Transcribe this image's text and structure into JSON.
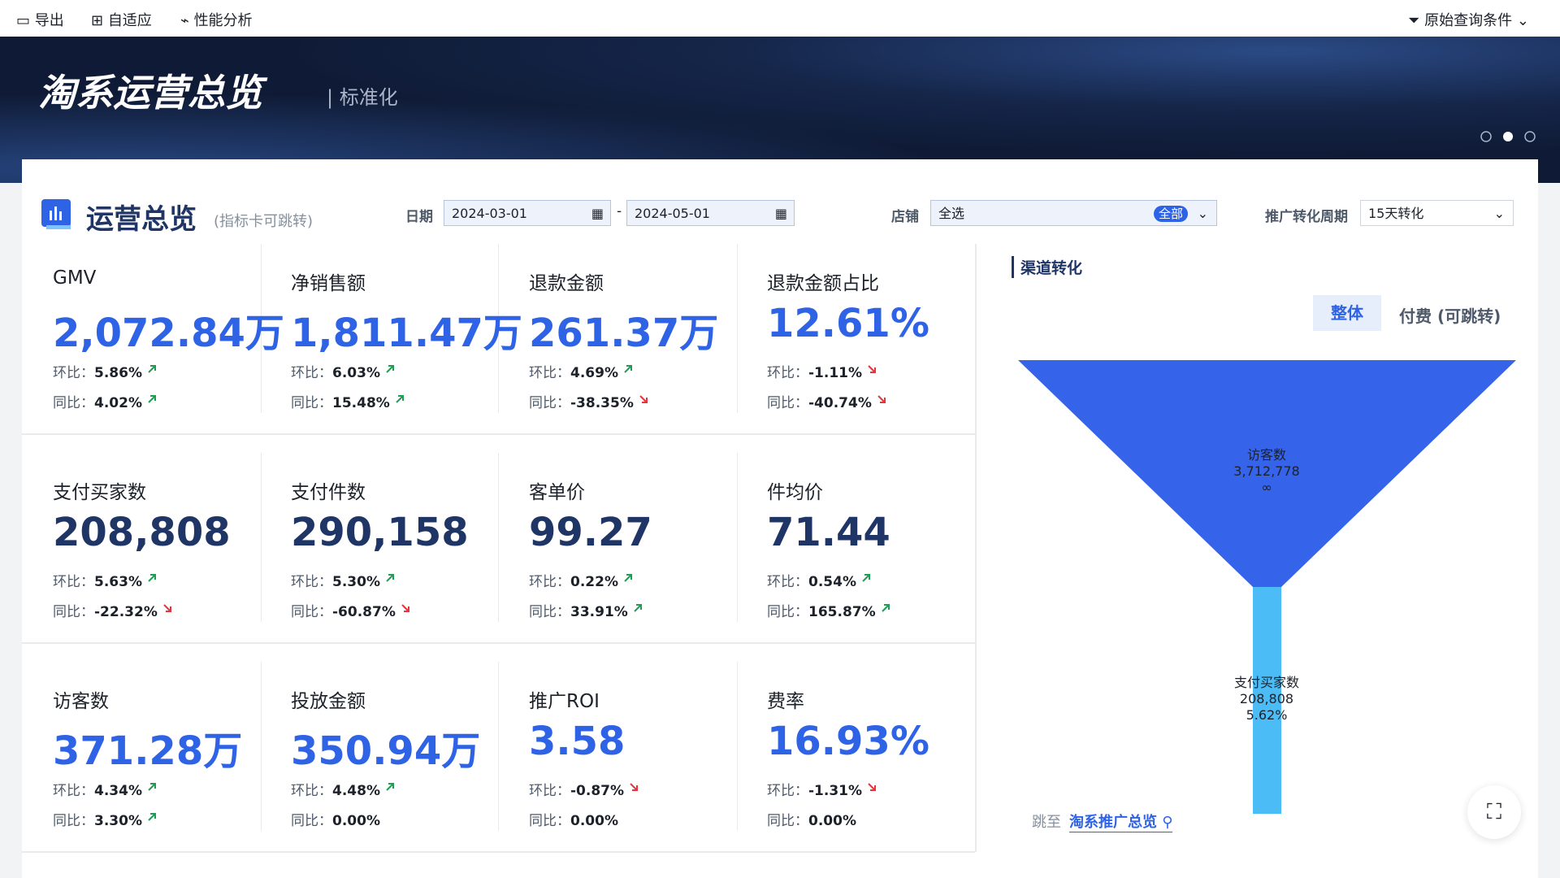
{
  "toolbar": {
    "left": [
      "导出",
      "自适应",
      "性能分析"
    ],
    "right": "原始查询条件"
  },
  "banner": {
    "title": "淘系运营总览",
    "subtitle": "| 标准化"
  },
  "section": {
    "title": "运营总览",
    "hint": "(指标卡可跳转)"
  },
  "filters": {
    "date_label": "日期",
    "date_start": "2024-03-01",
    "date_sep": "-",
    "date_end": "2024-05-01",
    "shop_label": "店铺",
    "shop_value": "全选",
    "shop_tag": "全部",
    "period_label": "推广转化周期",
    "period_value": "15天转化"
  },
  "kpi_rows": [
    {
      "color": "#2f63e6",
      "cards": [
        {
          "name": "GMV",
          "value": "2,072.84万",
          "mom_label": "环比：",
          "mom": "5.86%",
          "mom_dir": "up",
          "yoy_label": "同比：",
          "yoy": "4.02%",
          "yoy_dir": "up"
        },
        {
          "name": "净销售额",
          "value": "1,811.47万",
          "mom_label": "环比：",
          "mom": "6.03%",
          "mom_dir": "up",
          "yoy_label": "同比：",
          "yoy": "15.48%",
          "yoy_dir": "up"
        },
        {
          "name": "退款金额",
          "value": "261.37万",
          "mom_label": "环比：",
          "mom": "4.69%",
          "mom_dir": "up",
          "yoy_label": "同比：",
          "yoy": "-38.35%",
          "yoy_dir": "down"
        },
        {
          "name": "退款金额占比",
          "value": "12.61%",
          "mom_label": "环比：",
          "mom": "-1.11%",
          "mom_dir": "down",
          "yoy_label": "同比：",
          "yoy": "-40.74%",
          "yoy_dir": "down"
        }
      ]
    },
    {
      "color": "#1f3566",
      "cards": [
        {
          "name": "支付买家数",
          "value": "208,808",
          "mom_label": "环比：",
          "mom": "5.63%",
          "mom_dir": "up",
          "yoy_label": "同比：",
          "yoy": "-22.32%",
          "yoy_dir": "down"
        },
        {
          "name": "支付件数",
          "value": "290,158",
          "mom_label": "环比：",
          "mom": "5.30%",
          "mom_dir": "up",
          "yoy_label": "同比：",
          "yoy": "-60.87%",
          "yoy_dir": "down"
        },
        {
          "name": "客单价",
          "value": "99.27",
          "mom_label": "环比：",
          "mom": "0.22%",
          "mom_dir": "up",
          "yoy_label": "同比：",
          "yoy": "33.91%",
          "yoy_dir": "up"
        },
        {
          "name": "件均价",
          "value": "71.44",
          "mom_label": "环比：",
          "mom": "0.54%",
          "mom_dir": "up",
          "yoy_label": "同比：",
          "yoy": "165.87%",
          "yoy_dir": "up"
        }
      ]
    },
    {
      "color": "#2f63e6",
      "cards": [
        {
          "name": "访客数",
          "value": "371.28万",
          "mom_label": "环比：",
          "mom": "4.34%",
          "mom_dir": "up",
          "yoy_label": "同比：",
          "yoy": "3.30%",
          "yoy_dir": "up"
        },
        {
          "name": "投放金额",
          "value": "350.94万",
          "mom_label": "环比：",
          "mom": "4.48%",
          "mom_dir": "up",
          "yoy_label": "同比：",
          "yoy": "0.00%"
        },
        {
          "name": "推广ROI",
          "value": "3.58",
          "mom_label": "环比：",
          "mom": "-0.87%",
          "mom_dir": "down",
          "yoy_label": "同比：",
          "yoy": "0.00%"
        },
        {
          "name": "费率",
          "value": "16.93%",
          "mom_label": "环比：",
          "mom": "-1.31%",
          "mom_dir": "down",
          "yoy_label": "同比：",
          "yoy": "0.00%"
        }
      ]
    }
  ],
  "funnel": {
    "title": "渠道转化",
    "tabs": [
      "整体",
      "付费 (可跳转)"
    ],
    "stages": [
      {
        "name": "访客数",
        "value": "3,712,778",
        "rate": "∞"
      },
      {
        "name": "支付买家数",
        "value": "208,808",
        "rate": "5.62%"
      }
    ],
    "link_prefix": "跳至",
    "link": "淘系推广总览"
  }
}
